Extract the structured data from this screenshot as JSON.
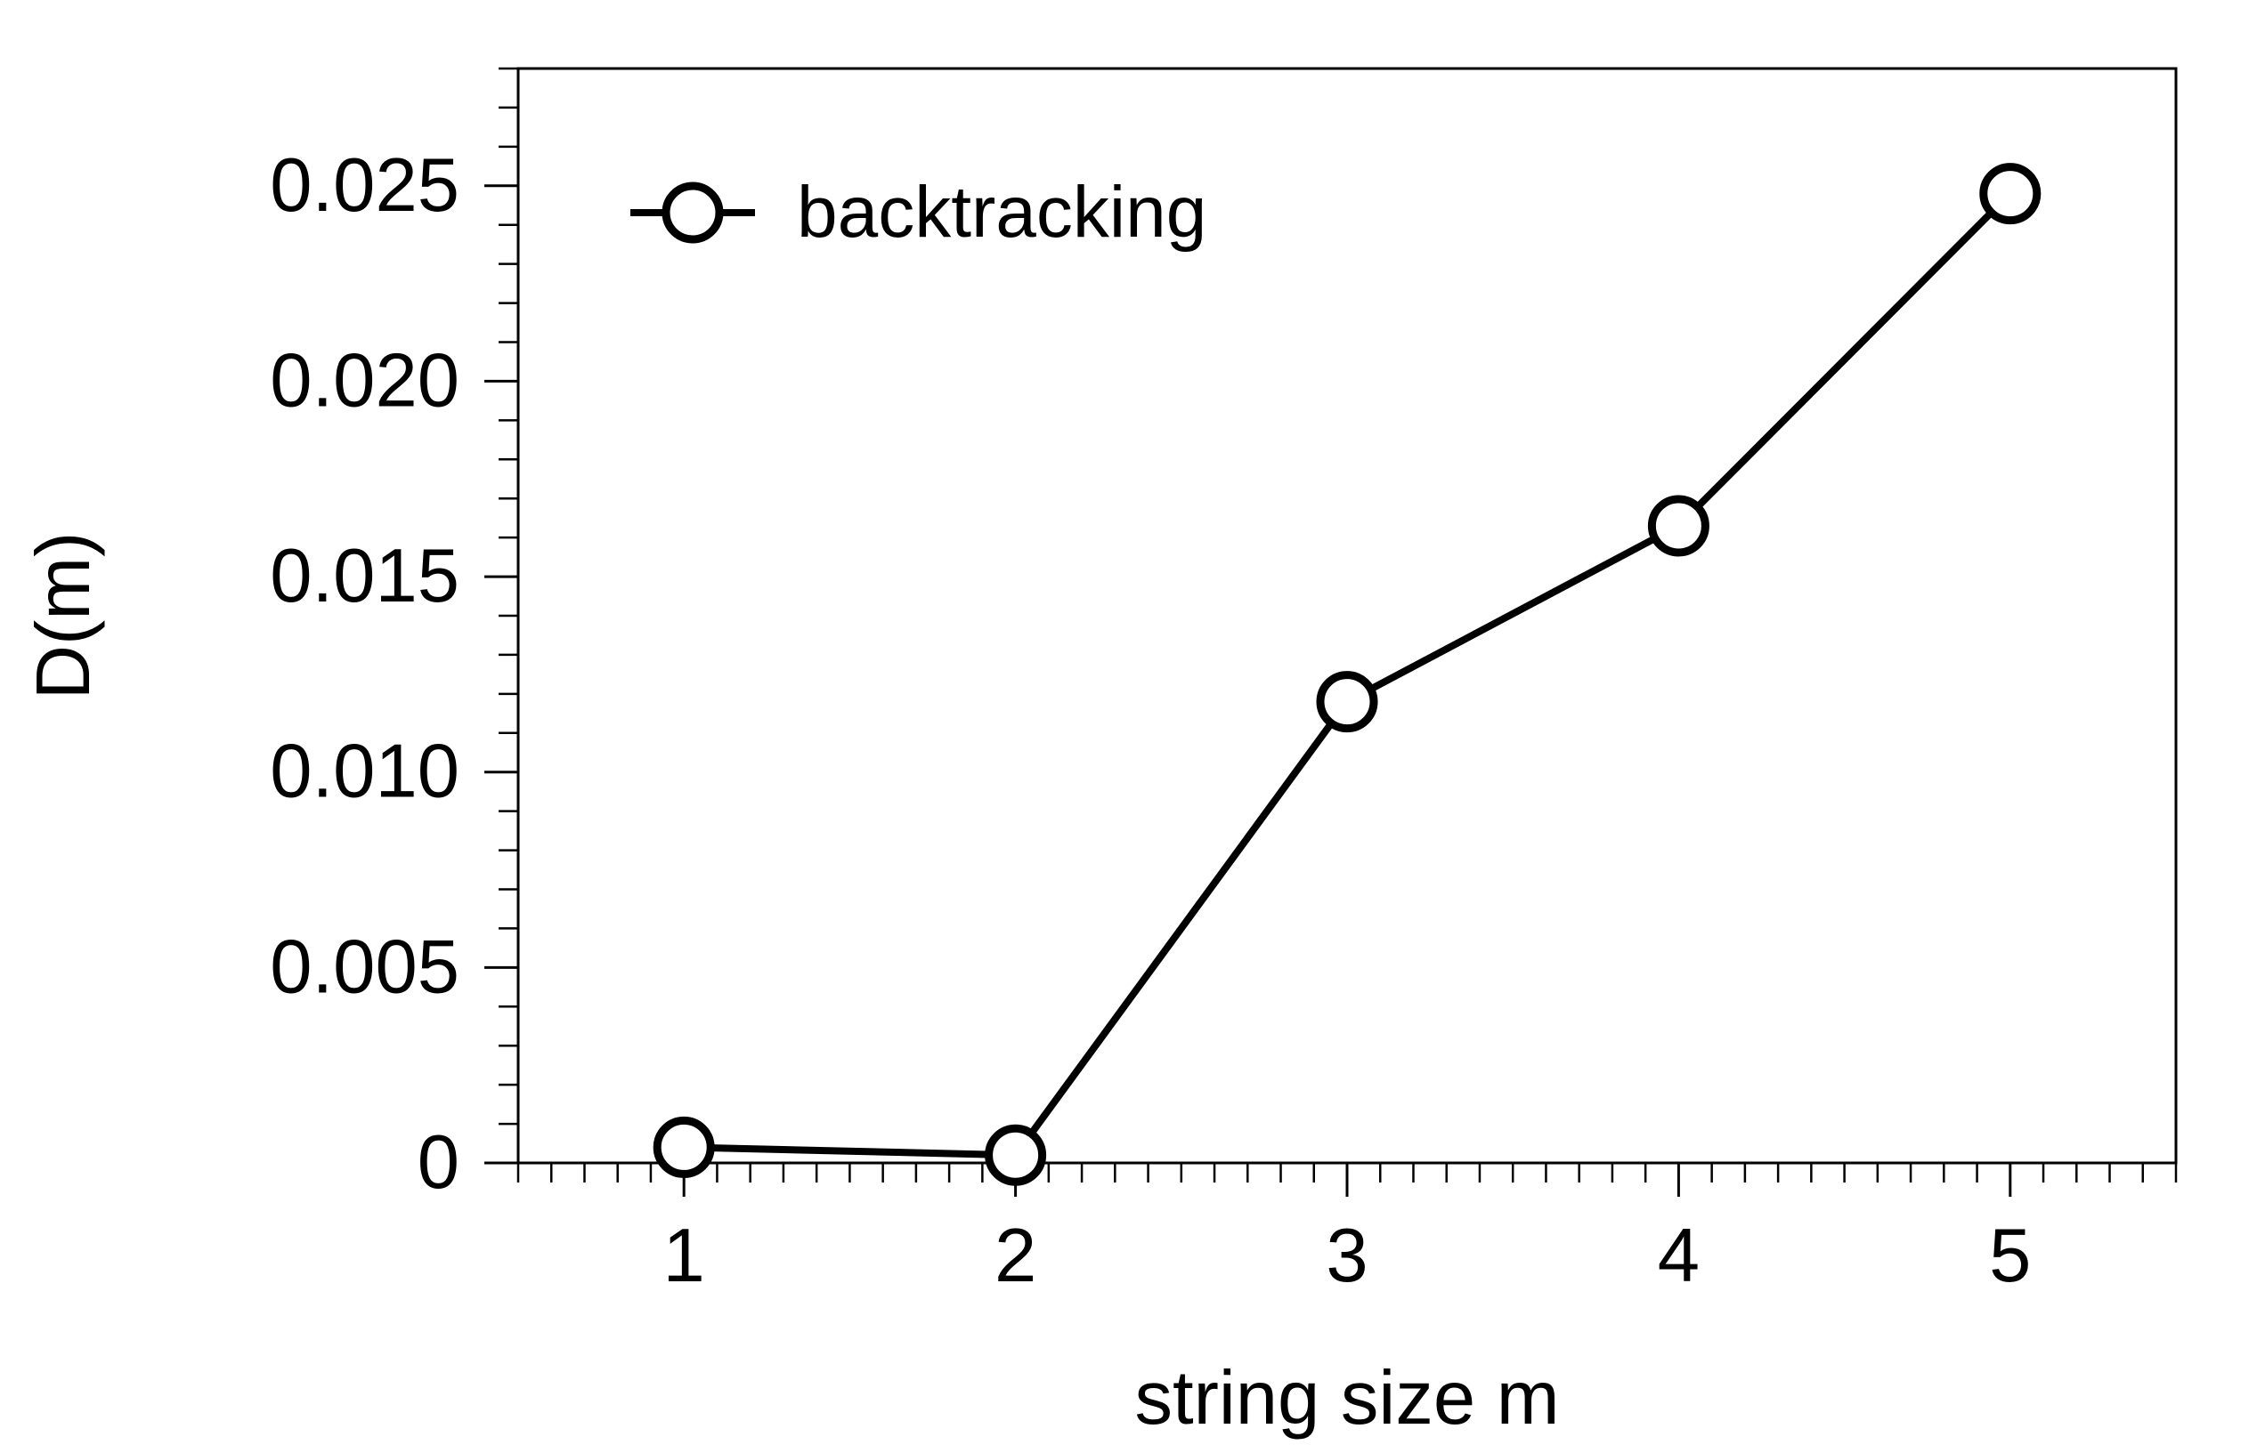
{
  "chart_data": {
    "type": "line",
    "title": "",
    "xlabel": "string size m",
    "ylabel": "D(m)",
    "xlim": [
      0.5,
      5.5
    ],
    "ylim": [
      0,
      0.028
    ],
    "grid": false,
    "legend_position": "top-left",
    "x_ticks": [
      1,
      2,
      3,
      4,
      5
    ],
    "x_tick_labels": [
      "1",
      "2",
      "3",
      "4",
      "5"
    ],
    "y_ticks": [
      0,
      0.005,
      0.01,
      0.015,
      0.02,
      0.025
    ],
    "y_tick_labels": [
      "0",
      "0.005",
      "0.010",
      "0.015",
      "0.020",
      "0.025"
    ],
    "series": [
      {
        "name": "backtracking",
        "marker": "open-circle",
        "color": "#000000",
        "x": [
          1,
          2,
          3,
          4,
          5
        ],
        "y": [
          0.0004,
          0.0002,
          0.0118,
          0.0163,
          0.0248
        ]
      }
    ]
  }
}
